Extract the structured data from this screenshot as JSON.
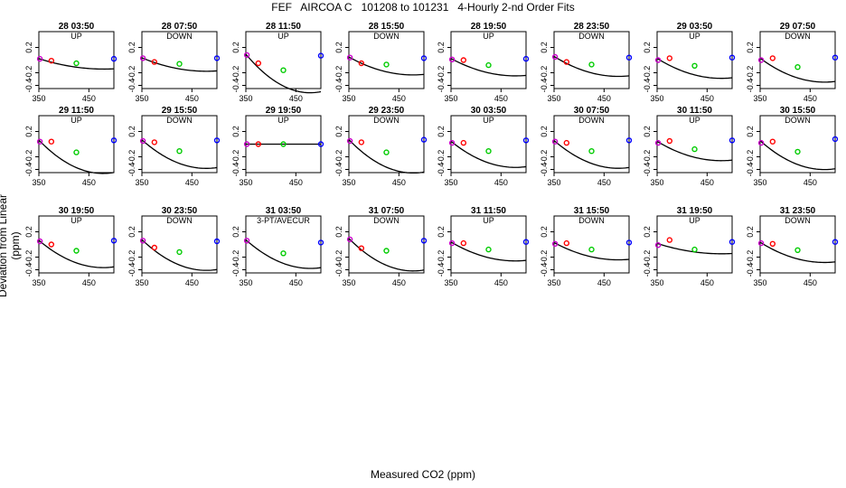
{
  "title": "FEF   AIRCOA C   101208 to 101231   4-Hourly 2-nd Order Fits",
  "ylabel": "Deviation from Linear (ppm)",
  "xlabel": "Measured CO2 (ppm)",
  "colors": {
    "curve": "#000000",
    "c1": "#cc00cc",
    "c2": "#ff0000",
    "c3": "#00cc00",
    "c4": "#0000ff"
  },
  "chart_data": {
    "type": "scatter",
    "xlim": [
      350,
      500
    ],
    "ylim": [
      -0.45,
      0.45
    ],
    "xticks": [
      350,
      450
    ],
    "yticks": [
      0.2,
      -0.2,
      -0.4
    ],
    "standard_x": [
      352,
      375,
      425,
      500
    ],
    "panels": [
      {
        "title": "28 03:50",
        "direction": "UP",
        "y": [
          0.02,
          -0.01,
          -0.05,
          0.02
        ],
        "fit": [
          0.0187,
          -0.00251,
          9.82e-06
        ]
      },
      {
        "title": "28 07:50",
        "direction": "DOWN",
        "y": [
          0.03,
          -0.03,
          -0.06,
          0.03
        ],
        "fit": [
          0.0299,
          -0.00325,
          1.28e-05
        ]
      },
      {
        "title": "28 11:50",
        "direction": "UP",
        "y": [
          0.08,
          -0.05,
          -0.16,
          0.07
        ],
        "fit": [
          0.0752,
          -0.00933,
          3.68e-05
        ]
      },
      {
        "title": "28 15:50",
        "direction": "DOWN",
        "y": [
          0.04,
          -0.05,
          -0.07,
          0.03
        ],
        "fit": [
          0.0408,
          -0.00435,
          1.72e-05
        ]
      },
      {
        "title": "28 19:50",
        "direction": "UP",
        "y": [
          0.01,
          0.0,
          -0.08,
          0.02
        ],
        "fit": [
          0.0167,
          -0.00419,
          1.65e-05
        ]
      },
      {
        "title": "28 23:50",
        "direction": "DOWN",
        "y": [
          0.05,
          -0.03,
          -0.07,
          0.04
        ],
        "fit": [
          0.049,
          -0.00484,
          1.91e-05
        ]
      },
      {
        "title": "29 03:50",
        "direction": "UP",
        "y": [
          0.0,
          0.03,
          -0.09,
          0.04
        ],
        "fit": [
          0.0179,
          -0.00485,
          1.92e-05
        ]
      },
      {
        "title": "29 07:50",
        "direction": "DOWN",
        "y": [
          0.0,
          0.03,
          -0.11,
          0.04
        ],
        "fit": [
          0.0185,
          -0.00578,
          2.28e-05
        ]
      },
      {
        "title": "29 11:50",
        "direction": "UP",
        "y": [
          0.04,
          0.04,
          -0.13,
          0.06
        ],
        "fit": [
          0.0476,
          -0.00806,
          3.18e-05
        ]
      },
      {
        "title": "29 15:50",
        "direction": "DOWN",
        "y": [
          0.05,
          0.03,
          -0.11,
          0.06
        ],
        "fit": [
          0.054,
          -0.00691,
          2.73e-05
        ]
      },
      {
        "title": "29 19:50",
        "direction": "UP",
        "y": [
          0.0,
          0.0,
          0.0,
          0.0
        ],
        "fit": [
          0.0,
          0.0,
          0.0
        ]
      },
      {
        "title": "29 23:50",
        "direction": "DOWN",
        "y": [
          0.05,
          0.03,
          -0.13,
          0.07
        ],
        "fit": [
          0.055,
          -0.00806,
          3.18e-05
        ]
      },
      {
        "title": "30 03:50",
        "direction": "UP",
        "y": [
          0.02,
          0.02,
          -0.11,
          0.06
        ],
        "fit": [
          0.0321,
          -0.00631,
          2.49e-05
        ]
      },
      {
        "title": "30 07:50",
        "direction": "DOWN",
        "y": [
          0.04,
          0.02,
          -0.11,
          0.06
        ],
        "fit": [
          0.0441,
          -0.00673,
          2.66e-05
        ]
      },
      {
        "title": "30 11:50",
        "direction": "UP",
        "y": [
          0.02,
          0.05,
          -0.08,
          0.06
        ],
        "fit": [
          0.0347,
          -0.00468,
          1.85e-05
        ]
      },
      {
        "title": "30 15:50",
        "direction": "DOWN",
        "y": [
          0.02,
          0.04,
          -0.12,
          0.08
        ],
        "fit": [
          0.0413,
          -0.00698,
          2.75e-05
        ]
      },
      {
        "title": "30 19:50",
        "direction": "UP",
        "y": [
          0.05,
          0.0,
          -0.1,
          0.06
        ],
        "fit": [
          0.0524,
          -0.00661,
          2.61e-05
        ]
      },
      {
        "title": "30 23:50",
        "direction": "DOWN",
        "y": [
          0.06,
          -0.05,
          -0.12,
          0.05
        ],
        "fit": [
          0.0606,
          -0.00741,
          2.92e-05
        ]
      },
      {
        "title": "31 03:50",
        "direction": "3-PT/AVECUR",
        "y": [
          0.06,
          null,
          -0.14,
          0.03
        ],
        "fit": [
          0.0592,
          -0.00689,
          2.71e-05
        ]
      },
      {
        "title": "31 07:50",
        "direction": "DOWN",
        "y": [
          0.08,
          -0.06,
          -0.1,
          0.06
        ],
        "fit": [
          0.0794,
          -0.00787,
          3.11e-05
        ]
      },
      {
        "title": "31 11:50",
        "direction": "UP",
        "y": [
          0.02,
          0.02,
          -0.08,
          0.04
        ],
        "fit": [
          0.0293,
          -0.00458,
          1.81e-05
        ]
      },
      {
        "title": "31 15:50",
        "direction": "DOWN",
        "y": [
          0.01,
          0.02,
          -0.08,
          0.03
        ],
        "fit": [
          0.0215,
          -0.00418,
          1.65e-05
        ]
      },
      {
        "title": "31 19:50",
        "direction": "UP",
        "y": [
          -0.01,
          0.07,
          -0.08,
          0.04
        ],
        "fit": [
          0.0116,
          -0.00251,
          9.91e-06
        ]
      },
      {
        "title": "31 23:50",
        "direction": "DOWN",
        "y": [
          0.02,
          0.01,
          -0.09,
          0.04
        ],
        "fit": [
          0.0251,
          -0.00489,
          1.93e-05
        ]
      }
    ]
  }
}
